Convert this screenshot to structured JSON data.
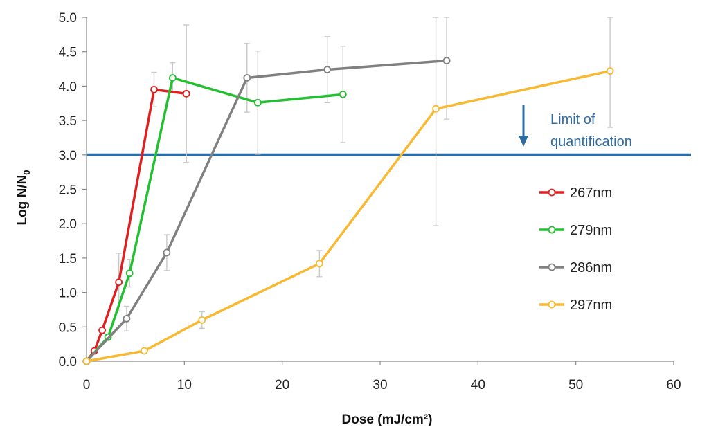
{
  "chart_data": {
    "type": "line",
    "xlabel": "Dose (mJ/cm²)",
    "ylabel_main": "Log N/N",
    "ylabel_sub": "0",
    "xlim": [
      0,
      60
    ],
    "ylim": [
      0,
      5
    ],
    "x_ticks": [
      "0",
      "10",
      "20",
      "30",
      "40",
      "50",
      "60"
    ],
    "y_ticks": [
      "0.0",
      "0.5",
      "1.0",
      "1.5",
      "2.0",
      "2.5",
      "3.0",
      "3.5",
      "4.0",
      "4.5",
      "5.0"
    ],
    "grid": false,
    "legend_position": "right",
    "series": [
      {
        "name": "267nm",
        "color": "#e02020",
        "x": [
          0,
          0.8,
          1.6,
          3.3,
          6.9,
          10.2
        ],
        "y": [
          0.0,
          0.15,
          0.45,
          1.15,
          3.95,
          3.89
        ],
        "err": [
          0,
          0,
          0,
          0.42,
          0.25,
          1.0
        ]
      },
      {
        "name": "279nm",
        "color": "#22c030",
        "x": [
          0,
          2.2,
          4.4,
          8.8,
          17.5,
          26.2
        ],
        "y": [
          0.0,
          0.35,
          1.28,
          4.12,
          3.76,
          3.88
        ],
        "err": [
          0,
          0,
          0.2,
          0.22,
          0.75,
          0.7
        ]
      },
      {
        "name": "286nm",
        "color": "#808080",
        "x": [
          0,
          4.1,
          8.2,
          16.4,
          24.6,
          36.8
        ],
        "y": [
          0.0,
          0.62,
          1.58,
          4.12,
          4.24,
          4.37
        ],
        "err": [
          0,
          0.18,
          0.26,
          0.5,
          0.48,
          0.85
        ]
      },
      {
        "name": "297nm",
        "color": "#f8b830",
        "x": [
          0,
          5.9,
          11.8,
          23.8,
          35.7,
          53.5
        ],
        "y": [
          0.0,
          0.15,
          0.6,
          1.42,
          3.67,
          4.22
        ],
        "err": [
          0,
          0,
          0.12,
          0.19,
          1.7,
          0.82
        ]
      }
    ],
    "annotations": {
      "limit_line_y": 3.0,
      "limit_color": "#2e6da4",
      "limit_text_line1": "Limit of",
      "limit_text_line2": "quantification"
    }
  }
}
